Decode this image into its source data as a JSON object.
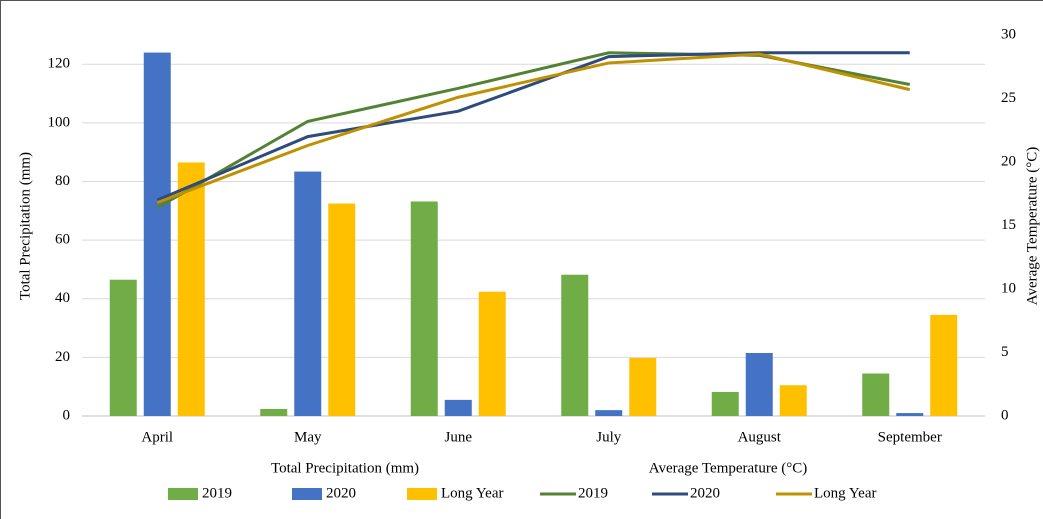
{
  "chart_data": {
    "type": "bar-line",
    "categories": [
      "April",
      "May",
      "June",
      "July",
      "August",
      "September"
    ],
    "series": [
      {
        "name": "2019",
        "type": "bar",
        "color": "#70ad47",
        "values": [
          46.5,
          2.4,
          73.2,
          48.2,
          8.2,
          14.5
        ]
      },
      {
        "name": "2020",
        "type": "bar",
        "color": "#4472c4",
        "values": [
          124,
          83.4,
          5.5,
          2,
          21.5,
          1
        ]
      },
      {
        "name": "Long Year",
        "type": "bar",
        "color": "#ffc000",
        "values": [
          86.5,
          72.5,
          42.4,
          19.8,
          10.5,
          34.5
        ]
      },
      {
        "name": "2019",
        "type": "line",
        "axis": "y2",
        "color": "#548235",
        "values": [
          16.4,
          23.2,
          25.8,
          28.6,
          28.4,
          26.1
        ]
      },
      {
        "name": "2020",
        "type": "line",
        "axis": "y2",
        "color": "#2f4b7c",
        "values": [
          17,
          22,
          24,
          28.3,
          28.6,
          28.6
        ]
      },
      {
        "name": "Long Year",
        "type": "line",
        "axis": "y2",
        "color": "#bf9000",
        "values": [
          16.8,
          21.3,
          25.1,
          27.8,
          28.5,
          25.7
        ]
      }
    ],
    "y_label": "Total Precipitation (mm)",
    "y2_label": "Average Temperature (°C)",
    "legend_groups": [
      "Total Precipitation (mm)",
      "Average Temperature (°C)"
    ],
    "ylim": [
      0,
      130
    ],
    "yticks": [
      0,
      20,
      40,
      60,
      80,
      100,
      120
    ],
    "y2lim": [
      0,
      30
    ],
    "y2ticks": [
      0,
      5,
      10,
      15,
      20,
      25,
      30
    ],
    "grid": true,
    "legend": "bottom"
  }
}
